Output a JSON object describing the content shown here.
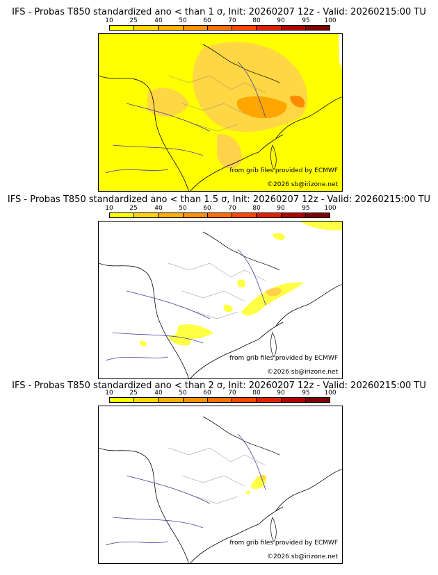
{
  "scale": {
    "ticks": [
      "10",
      "25",
      "40",
      "50",
      "60",
      "70",
      "80",
      "90",
      "95",
      "100"
    ],
    "colors": [
      "#ffff00",
      "#ffd700",
      "#ffb000",
      "#ff9000",
      "#ff7000",
      "#ff4500",
      "#e02000",
      "#b00000",
      "#800000",
      "#500000"
    ]
  },
  "panels": [
    {
      "title": "IFS - Probas T850  standardized ano < than 1 σ, Init: 20260207 12z - Valid: 20260215:00 TU",
      "source": "from grib files provided by ECMWF",
      "copyright": "©2026 sb@irizone.net"
    },
    {
      "title": "IFS - Probas T850  standardized ano < than 1.5 σ, Init: 20260207 12z - Valid: 20260215:00 TU",
      "source": "from grib files provided by ECMWF",
      "copyright": "©2026 sb@irizone.net"
    },
    {
      "title": "IFS - Probas T850  standardized ano < than 2 σ, Init: 20260207 12z - Valid: 20260215:00 TU",
      "source": "from grib files provided by ECMWF",
      "copyright": "©2026 sb@irizone.net"
    }
  ]
}
